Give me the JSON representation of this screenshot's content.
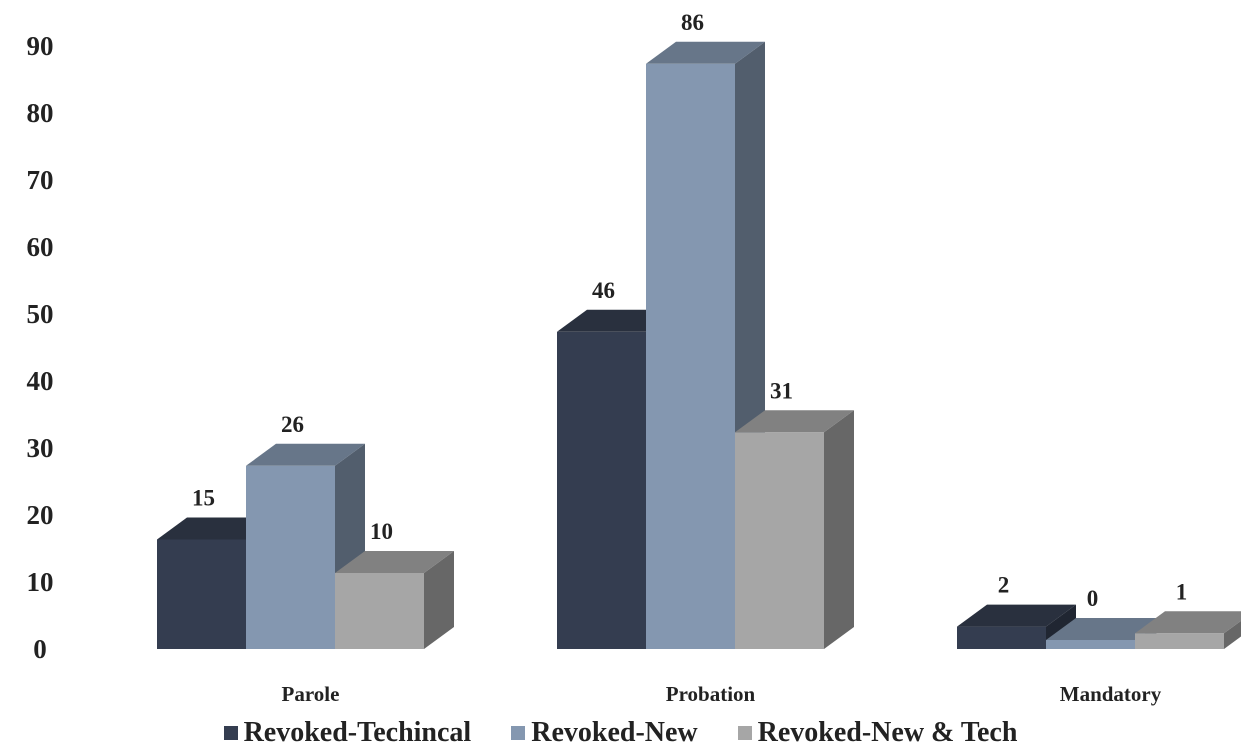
{
  "chart_data": {
    "type": "bar",
    "title": "",
    "xlabel": "",
    "ylabel": "",
    "ylim": [
      0,
      90
    ],
    "yticks": [
      0,
      10,
      20,
      30,
      40,
      50,
      60,
      70,
      80,
      90
    ],
    "categories": [
      "Parole",
      "Probation",
      "Mandatory"
    ],
    "series": [
      {
        "name": "Revoked-Techincal",
        "values": [
          15,
          46,
          2
        ],
        "color": "#343d50"
      },
      {
        "name": "Revoked-New",
        "values": [
          26,
          86,
          0
        ],
        "color": "#8497b0"
      },
      {
        "name": "Revoked-New & Tech",
        "values": [
          10,
          31,
          1
        ],
        "color": "#a6a6a6"
      }
    ],
    "style": "3d-clustered-column",
    "grid": false,
    "legend_position": "bottom"
  }
}
